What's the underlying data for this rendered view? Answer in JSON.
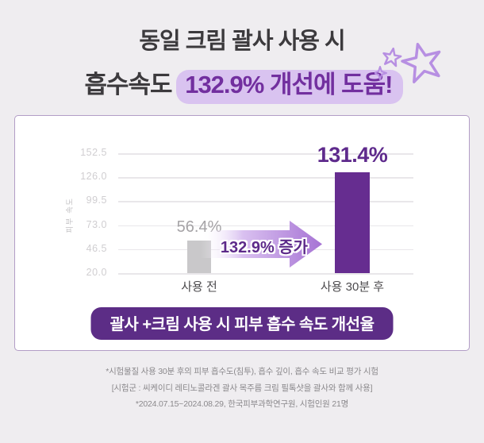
{
  "header": {
    "title_line1": "동일 크림 괄사 사용 시",
    "title_line2_plain": "흡수속도",
    "title_line2_highlight": "132.9% 개선에 도움!",
    "stars_icon": "sparkle-stars"
  },
  "chart_data": {
    "type": "bar",
    "title": "괄사 +크림 사용 시 피부 흡수 속도 개선율",
    "ylabel": "피부 속도",
    "yticks": [
      "152.5",
      "126.0",
      "99.5",
      "73.0",
      "46.5",
      "20.0"
    ],
    "ymin": 20.0,
    "ymax": 152.5,
    "categories": [
      "사용 전",
      "사용 30분 후"
    ],
    "values": [
      56.4,
      131.4
    ],
    "data_labels": [
      "56.4%",
      "131.4%"
    ],
    "bar_colors": [
      "#c9c8ca",
      "#662d90"
    ],
    "annotation": "132.9% 증가",
    "grid": true,
    "legend": false
  },
  "footnotes": {
    "line1": "*시험물질 사용 30분 후의 피부 흡수도(침투), 흡수 깊이, 흡수 속도 비교 평가 시험",
    "line2": "[시험군 : 씨케이디 레티노콜라겐 괄사 목주름 크림 필톡샷을 괄사와 함께 사용]",
    "line3": "*2024.07.15~2024.08.29, 한국피부과학연구원, 시험인원 21명"
  },
  "colors": {
    "page_bg": "#efedf0",
    "card_bg": "#ffffff",
    "card_border": "#b29dc6",
    "accent_purple": "#662d90",
    "badge_purple": "#5c2d86",
    "title_text": "#3c3a3d",
    "title_highlight_text": "#722f9f",
    "highlight_bg": "#d9c3f0",
    "arrow_purple": "#a673d4",
    "gray_bar": "#c9c8ca",
    "footnote_text": "#8b898c"
  }
}
